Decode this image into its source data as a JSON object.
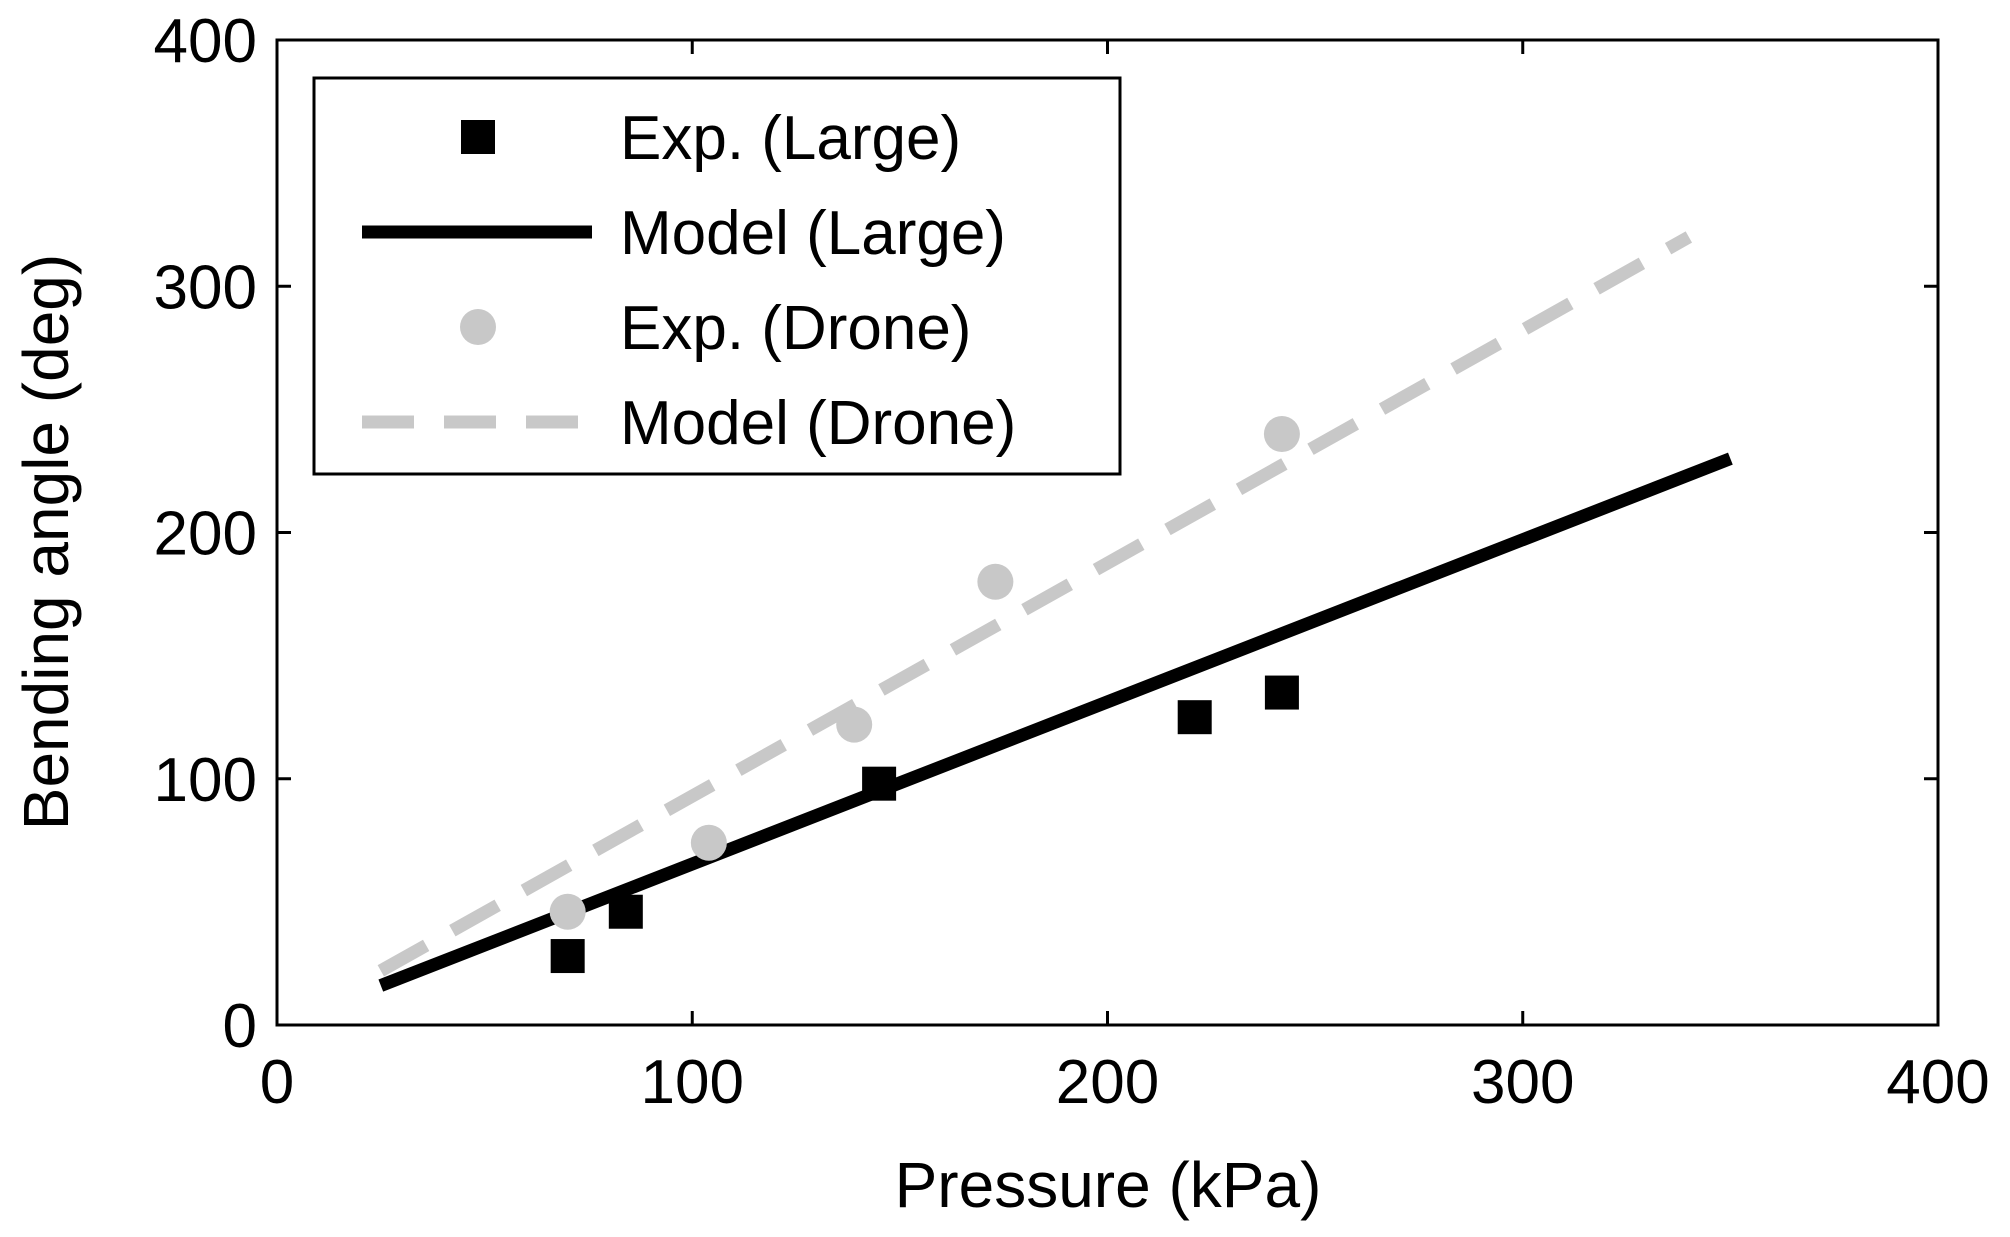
{
  "chart_data": {
    "type": "scatter",
    "title": "",
    "xlabel": "Pressure (kPa)",
    "ylabel": "Bending angle (deg)",
    "xlim": [
      0,
      400
    ],
    "ylim": [
      0,
      400
    ],
    "x_ticks": [
      0,
      100,
      200,
      300,
      400
    ],
    "y_ticks": [
      0,
      100,
      200,
      300,
      400
    ],
    "x_tick_labels": [
      "0",
      "100",
      "200",
      "300",
      "400"
    ],
    "y_tick_labels": [
      "0",
      "100",
      "200",
      "300",
      "400"
    ],
    "grid": false,
    "legend_position": "top-left",
    "series": [
      {
        "name": "Exp. (Large)",
        "kind": "scatter",
        "marker": "square",
        "color": "#000000",
        "points": [
          {
            "x": 70,
            "y": 28
          },
          {
            "x": 84,
            "y": 46
          },
          {
            "x": 145,
            "y": 98
          },
          {
            "x": 221,
            "y": 125
          },
          {
            "x": 242,
            "y": 135
          }
        ]
      },
      {
        "name": "Model (Large)",
        "kind": "line",
        "style": "solid",
        "color": "#000000",
        "points": [
          {
            "x": 25,
            "y": 16
          },
          {
            "x": 350,
            "y": 230
          }
        ]
      },
      {
        "name": "Exp. (Drone)",
        "kind": "scatter",
        "marker": "circle",
        "color": "#c8c8c8",
        "points": [
          {
            "x": 70,
            "y": 46
          },
          {
            "x": 104,
            "y": 74
          },
          {
            "x": 139,
            "y": 122
          },
          {
            "x": 173,
            "y": 180
          },
          {
            "x": 242,
            "y": 240
          }
        ]
      },
      {
        "name": "Model (Drone)",
        "kind": "line",
        "style": "dashed",
        "color": "#c8c8c8",
        "points": [
          {
            "x": 25,
            "y": 22
          },
          {
            "x": 340,
            "y": 320
          }
        ]
      }
    ]
  }
}
